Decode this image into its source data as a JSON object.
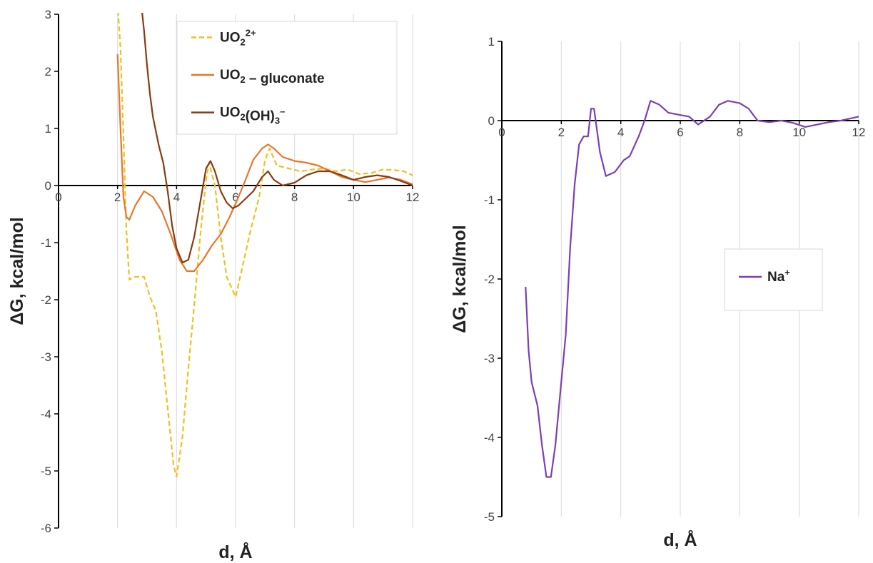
{
  "chart_data": [
    {
      "type": "line",
      "xlabel": "d, Å",
      "ylabel": "ΔG, kcal/mol",
      "xlim": [
        0,
        12
      ],
      "ylim": [
        -6,
        3
      ],
      "x_ticks": [
        "0",
        "2",
        "4",
        "6",
        "8",
        "10",
        "12"
      ],
      "y_ticks": [
        "3",
        "2",
        "1",
        "0",
        "-1",
        "-2",
        "-3",
        "-4",
        "-5",
        "-6"
      ],
      "grid": "vertical",
      "legend_position": "top-right",
      "series": [
        {
          "name": "UO22+",
          "legend": {
            "base": "UO",
            "sub": "2",
            "sup": "2+",
            "tail": ""
          },
          "color": "#F2C01E",
          "style": "dashed",
          "points": [
            [
              2.0,
              3.2
            ],
            [
              2.1,
              2.4
            ],
            [
              2.2,
              0.9
            ],
            [
              2.3,
              -0.8
            ],
            [
              2.4,
              -1.65
            ],
            [
              2.6,
              -1.6
            ],
            [
              2.9,
              -1.6
            ],
            [
              3.1,
              -1.95
            ],
            [
              3.3,
              -2.2
            ],
            [
              3.5,
              -2.9
            ],
            [
              3.7,
              -3.9
            ],
            [
              3.9,
              -4.9
            ],
            [
              4.0,
              -5.1
            ],
            [
              4.2,
              -4.4
            ],
            [
              4.4,
              -3.2
            ],
            [
              4.6,
              -2.1
            ],
            [
              4.8,
              -0.9
            ],
            [
              5.0,
              0.1
            ],
            [
              5.1,
              0.4
            ],
            [
              5.3,
              0.0
            ],
            [
              5.5,
              -0.9
            ],
            [
              5.7,
              -1.6
            ],
            [
              6.0,
              -1.95
            ],
            [
              6.2,
              -1.5
            ],
            [
              6.5,
              -0.8
            ],
            [
              6.8,
              -0.2
            ],
            [
              7.0,
              0.45
            ],
            [
              7.15,
              0.65
            ],
            [
              7.4,
              0.35
            ],
            [
              7.8,
              0.3
            ],
            [
              8.2,
              0.25
            ],
            [
              8.6,
              0.28
            ],
            [
              9.0,
              0.3
            ],
            [
              9.4,
              0.25
            ],
            [
              9.8,
              0.28
            ],
            [
              10.2,
              0.2
            ],
            [
              10.6,
              0.22
            ],
            [
              11.0,
              0.28
            ],
            [
              11.4,
              0.27
            ],
            [
              11.7,
              0.25
            ],
            [
              12.0,
              0.18
            ]
          ]
        },
        {
          "name": "UO2 – gluconate",
          "legend": {
            "base": "UO",
            "sub": "2",
            "sup": "",
            "tail": " – gluconate"
          },
          "color": "#E8772A",
          "style": "solid",
          "points": [
            [
              2.0,
              2.3
            ],
            [
              2.1,
              1.0
            ],
            [
              2.2,
              -0.2
            ],
            [
              2.3,
              -0.55
            ],
            [
              2.4,
              -0.6
            ],
            [
              2.6,
              -0.35
            ],
            [
              2.9,
              -0.1
            ],
            [
              3.2,
              -0.2
            ],
            [
              3.5,
              -0.45
            ],
            [
              3.8,
              -0.85
            ],
            [
              4.1,
              -1.3
            ],
            [
              4.35,
              -1.5
            ],
            [
              4.6,
              -1.5
            ],
            [
              4.9,
              -1.3
            ],
            [
              5.2,
              -1.05
            ],
            [
              5.5,
              -0.85
            ],
            [
              5.8,
              -0.55
            ],
            [
              6.1,
              -0.2
            ],
            [
              6.3,
              0.05
            ],
            [
              6.6,
              0.45
            ],
            [
              6.9,
              0.65
            ],
            [
              7.1,
              0.72
            ],
            [
              7.3,
              0.65
            ],
            [
              7.6,
              0.5
            ],
            [
              8.0,
              0.43
            ],
            [
              8.4,
              0.4
            ],
            [
              8.8,
              0.35
            ],
            [
              9.2,
              0.25
            ],
            [
              9.6,
              0.15
            ],
            [
              10.0,
              0.1
            ],
            [
              10.4,
              0.06
            ],
            [
              10.8,
              0.1
            ],
            [
              11.2,
              0.14
            ],
            [
              11.6,
              0.1
            ],
            [
              12.0,
              0.02
            ]
          ]
        },
        {
          "name": "UO2(OH)3−",
          "legend": {
            "base": "UO",
            "sub": "2",
            "sup": "",
            "tail": "(OH)",
            "sub2": "3",
            "sup2": "–"
          },
          "color": "#8B3A12",
          "style": "solid",
          "points": [
            [
              2.8,
              3.2
            ],
            [
              2.9,
              2.7
            ],
            [
              3.0,
              2.1
            ],
            [
              3.1,
              1.6
            ],
            [
              3.2,
              1.2
            ],
            [
              3.4,
              0.7
            ],
            [
              3.55,
              0.4
            ],
            [
              3.7,
              -0.1
            ],
            [
              3.85,
              -0.7
            ],
            [
              4.0,
              -1.1
            ],
            [
              4.2,
              -1.35
            ],
            [
              4.4,
              -1.3
            ],
            [
              4.6,
              -0.9
            ],
            [
              4.8,
              -0.3
            ],
            [
              5.0,
              0.3
            ],
            [
              5.15,
              0.43
            ],
            [
              5.3,
              0.25
            ],
            [
              5.5,
              -0.1
            ],
            [
              5.7,
              -0.3
            ],
            [
              5.9,
              -0.4
            ],
            [
              6.1,
              -0.35
            ],
            [
              6.3,
              -0.25
            ],
            [
              6.6,
              -0.1
            ],
            [
              6.9,
              0.15
            ],
            [
              7.1,
              0.25
            ],
            [
              7.3,
              0.1
            ],
            [
              7.6,
              0.0
            ],
            [
              8.0,
              0.05
            ],
            [
              8.4,
              0.18
            ],
            [
              8.8,
              0.25
            ],
            [
              9.2,
              0.25
            ],
            [
              9.6,
              0.18
            ],
            [
              10.0,
              0.1
            ],
            [
              10.4,
              0.15
            ],
            [
              10.8,
              0.18
            ],
            [
              11.2,
              0.15
            ],
            [
              11.6,
              0.08
            ],
            [
              12.0,
              0.0
            ]
          ]
        }
      ]
    },
    {
      "type": "line",
      "xlabel": "d, Å",
      "ylabel": "ΔG, kcal/mol",
      "xlim": [
        0,
        12
      ],
      "ylim": [
        -5,
        1
      ],
      "x_ticks": [
        "0",
        "2",
        "4",
        "6",
        "8",
        "10",
        "12"
      ],
      "y_ticks": [
        "1",
        "0",
        "-1",
        "-2",
        "-3",
        "-4",
        "-5"
      ],
      "grid": "vertical",
      "legend_position": "right",
      "series": [
        {
          "name": "Na+",
          "legend": {
            "base": "Na",
            "sub": "",
            "sup": "+",
            "tail": ""
          },
          "color": "#7B3FB8",
          "style": "solid",
          "points": [
            [
              0.8,
              -2.1
            ],
            [
              0.9,
              -2.9
            ],
            [
              1.0,
              -3.3
            ],
            [
              1.2,
              -3.6
            ],
            [
              1.35,
              -4.1
            ],
            [
              1.5,
              -4.5
            ],
            [
              1.65,
              -4.5
            ],
            [
              1.8,
              -4.1
            ],
            [
              2.0,
              -3.3
            ],
            [
              2.15,
              -2.7
            ],
            [
              2.3,
              -1.6
            ],
            [
              2.45,
              -0.8
            ],
            [
              2.6,
              -0.3
            ],
            [
              2.75,
              -0.2
            ],
            [
              2.9,
              -0.2
            ],
            [
              3.0,
              0.15
            ],
            [
              3.1,
              0.15
            ],
            [
              3.3,
              -0.4
            ],
            [
              3.5,
              -0.7
            ],
            [
              3.8,
              -0.65
            ],
            [
              4.1,
              -0.5
            ],
            [
              4.3,
              -0.45
            ],
            [
              4.6,
              -0.2
            ],
            [
              4.8,
              0.0
            ],
            [
              5.0,
              0.25
            ],
            [
              5.3,
              0.2
            ],
            [
              5.6,
              0.1
            ],
            [
              6.0,
              0.07
            ],
            [
              6.3,
              0.05
            ],
            [
              6.6,
              -0.05
            ],
            [
              7.0,
              0.05
            ],
            [
              7.3,
              0.2
            ],
            [
              7.6,
              0.25
            ],
            [
              8.0,
              0.22
            ],
            [
              8.3,
              0.15
            ],
            [
              8.6,
              0.0
            ],
            [
              9.0,
              -0.02
            ],
            [
              9.4,
              0.0
            ],
            [
              9.8,
              -0.03
            ],
            [
              10.2,
              -0.08
            ],
            [
              10.6,
              -0.05
            ],
            [
              11.0,
              -0.02
            ],
            [
              11.4,
              0.0
            ],
            [
              12.0,
              0.05
            ]
          ]
        }
      ]
    }
  ]
}
